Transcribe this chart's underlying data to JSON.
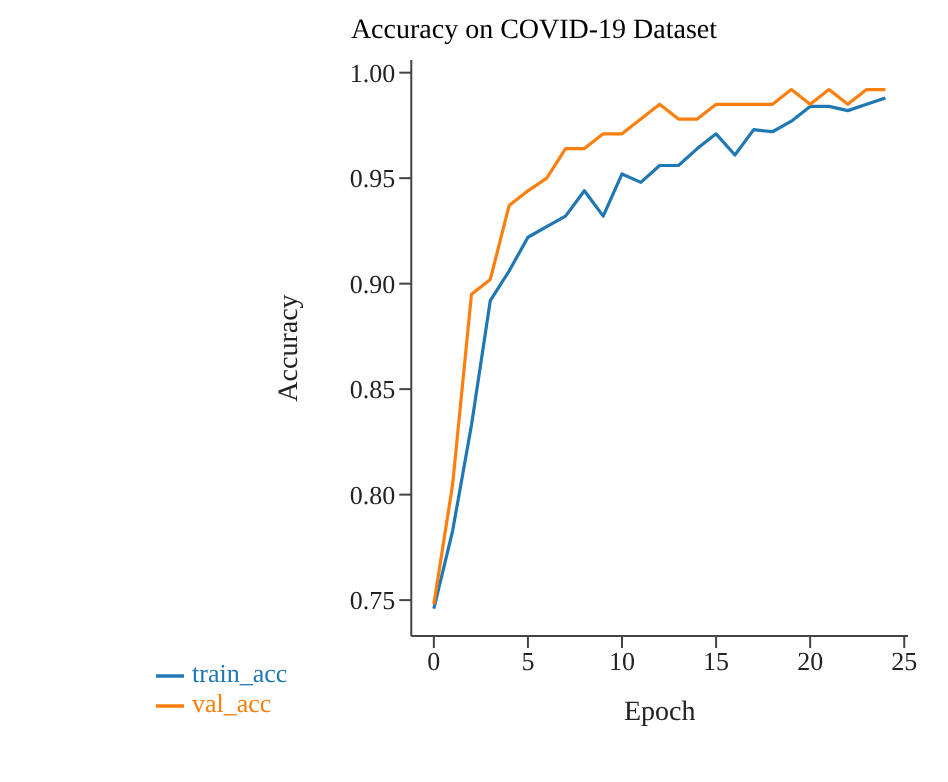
{
  "chart_data": {
    "type": "line",
    "title": "Accuracy on COVID-19 Dataset",
    "xlabel": "Epoch",
    "ylabel": "Accuracy",
    "x": [
      0,
      1,
      2,
      3,
      4,
      5,
      6,
      7,
      8,
      9,
      10,
      11,
      12,
      13,
      14,
      15,
      16,
      17,
      18,
      19,
      20,
      21,
      22,
      23,
      24
    ],
    "series": [
      {
        "name": "train_acc",
        "color": "#1f77b4",
        "values": [
          0.746,
          0.783,
          0.833,
          0.892,
          0.906,
          0.922,
          0.927,
          0.932,
          0.944,
          0.932,
          0.952,
          0.948,
          0.956,
          0.956,
          0.964,
          0.971,
          0.961,
          0.973,
          0.972,
          0.977,
          0.984,
          0.984,
          0.982,
          0.985,
          0.988
        ]
      },
      {
        "name": "val_acc",
        "color": "#ff7f0e",
        "values": [
          0.748,
          0.805,
          0.895,
          0.902,
          0.937,
          0.944,
          0.95,
          0.964,
          0.964,
          0.971,
          0.971,
          0.978,
          0.985,
          0.978,
          0.978,
          0.985,
          0.985,
          0.985,
          0.985,
          0.992,
          0.985,
          0.992,
          0.985,
          0.992,
          0.992
        ]
      }
    ],
    "xlim": [
      -1.2,
      25.2
    ],
    "xticks": [
      0,
      5,
      10,
      15,
      20,
      25
    ],
    "ylim": [
      0.733,
      1.006
    ],
    "yticks": [
      {
        "value": 0.75,
        "label": "0.75"
      },
      {
        "value": 0.8,
        "label": "0.80"
      },
      {
        "value": 0.85,
        "label": "0.85"
      },
      {
        "value": 0.9,
        "label": "0.90"
      },
      {
        "value": 0.95,
        "label": "0.95"
      },
      {
        "value": 1,
        "label": "1.00"
      }
    ],
    "grid": false,
    "legend": "bottom left",
    "marker": "none",
    "line_style": "solid"
  }
}
